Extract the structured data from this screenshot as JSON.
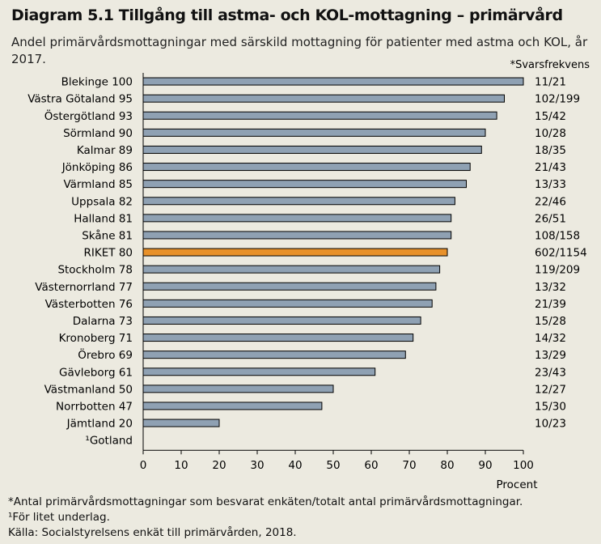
{
  "title": "Diagram 5.1 Tillgång till astma- och KOL-mottagning – primärvård",
  "subtitle": "Andel primärvårdsmottagningar med särskild mottagning för patienter med astma och KOL, år 2017.",
  "response_header": "*Svarsfrekvens",
  "footnotes": [
    "*Antal primärvårdsmottagningar som besvarat enkäten/totalt antal primärvårdsmottagningar.",
    "¹För litet underlag.",
    "Källa: Socialstyrelsens enkät till primärvården, 2018."
  ],
  "colors": {
    "bar": "#8FA1B3",
    "highlight": "#E8912A",
    "background": "#ECEAE0",
    "edge": "#000000"
  },
  "chart_data": {
    "type": "bar",
    "orientation": "horizontal",
    "xlabel": "Procent",
    "xlim": [
      0,
      100
    ],
    "xticks": [
      0,
      10,
      20,
      30,
      40,
      50,
      60,
      70,
      80,
      90,
      100
    ],
    "grid": false,
    "categories": [
      "Blekinge 100",
      "Västra Götaland 95",
      "Östergötland 93",
      "Sörmland 90",
      "Kalmar 89",
      "Jönköping 86",
      "Värmland 85",
      "Uppsala 82",
      "Halland 81",
      "Skåne 81",
      "RIKET 80",
      "Stockholm 78",
      "Västernorrland 77",
      "Västerbotten 76",
      "Dalarna 73",
      "Kronoberg 71",
      "Örebro 69",
      "Gävleborg 61",
      "Västmanland 50",
      "Norrbotten 47",
      "Jämtland 20",
      "¹Gotland"
    ],
    "values": [
      100,
      95,
      93,
      90,
      89,
      86,
      85,
      82,
      81,
      81,
      80,
      78,
      77,
      76,
      73,
      71,
      69,
      61,
      50,
      47,
      20,
      null
    ],
    "response_rates": [
      "11/21",
      "102/199",
      "15/42",
      "10/28",
      "18/35",
      "21/43",
      "13/33",
      "22/46",
      "26/51",
      "108/158",
      "602/1154",
      "119/209",
      "13/32",
      "21/39",
      "15/28",
      "14/32",
      "13/29",
      "23/43",
      "12/27",
      "15/30",
      "10/23",
      ""
    ],
    "highlight": "RIKET 80"
  }
}
